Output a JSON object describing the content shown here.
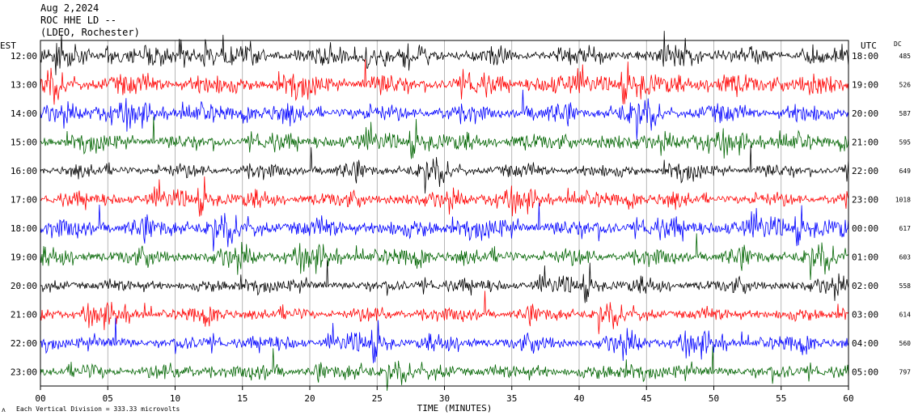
{
  "header": {
    "date": "Aug 2,2024",
    "station": "ROC HHE LD --",
    "network": "(LDEO, Rochester)"
  },
  "labels": {
    "left_zone": "EST",
    "right_zone": "UTC",
    "dc_header": "DC",
    "xlabel": "TIME (MINUTES)",
    "footnote_prefix": "ʌ",
    "footnote": "Each Vertical Division =  333.33 microvolts"
  },
  "colors": [
    "#000000",
    "#ff0000",
    "#0000ff",
    "#006400"
  ],
  "chart_data": {
    "type": "line",
    "subtype": "helicorder",
    "xlabel": "TIME (MINUTES)",
    "xlim": [
      0,
      60
    ],
    "x_ticks": [
      "00",
      "05",
      "10",
      "15",
      "20",
      "25",
      "30",
      "35",
      "40",
      "45",
      "50",
      "55",
      "60"
    ],
    "vertical_division_microvolts": 333.33,
    "series": [
      {
        "est": "12:00",
        "utc": "18:00",
        "dc": "485",
        "color": "#000000",
        "activity": 0.65
      },
      {
        "est": "13:00",
        "utc": "19:00",
        "dc": "526",
        "color": "#ff0000",
        "activity": 0.9
      },
      {
        "est": "14:00",
        "utc": "20:00",
        "dc": "587",
        "color": "#0000ff",
        "activity": 0.7
      },
      {
        "est": "15:00",
        "utc": "21:00",
        "dc": "595",
        "color": "#006400",
        "activity": 0.6
      },
      {
        "est": "16:00",
        "utc": "22:00",
        "dc": "649",
        "color": "#000000",
        "activity": 0.45
      },
      {
        "est": "17:00",
        "utc": "23:00",
        "dc": "1018",
        "color": "#ff0000",
        "activity": 0.5
      },
      {
        "est": "18:00",
        "utc": "00:00",
        "dc": "617",
        "color": "#0000ff",
        "activity": 0.85
      },
      {
        "est": "19:00",
        "utc": "01:00",
        "dc": "603",
        "color": "#006400",
        "activity": 0.6
      },
      {
        "est": "20:00",
        "utc": "02:00",
        "dc": "558",
        "color": "#000000",
        "activity": 0.4
      },
      {
        "est": "21:00",
        "utc": "03:00",
        "dc": "614",
        "color": "#ff0000",
        "activity": 0.45
      },
      {
        "est": "22:00",
        "utc": "04:00",
        "dc": "560",
        "color": "#0000ff",
        "activity": 0.5
      },
      {
        "est": "23:00",
        "utc": "05:00",
        "dc": "797",
        "color": "#006400",
        "activity": 0.55
      }
    ]
  }
}
